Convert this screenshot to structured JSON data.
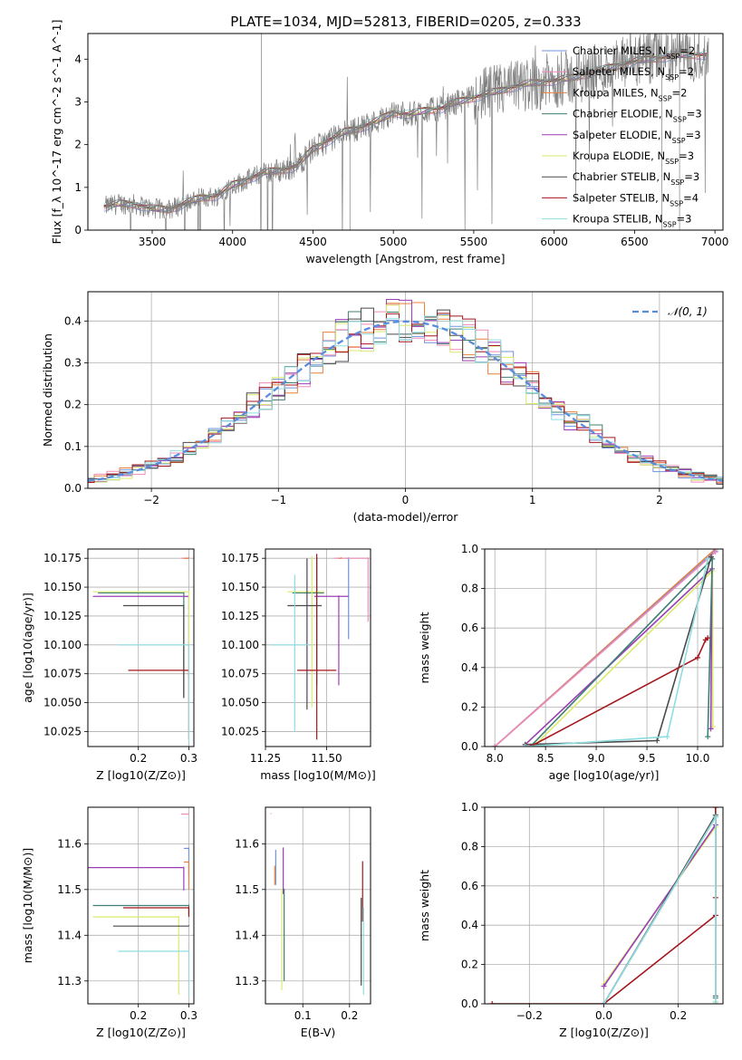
{
  "figure": {
    "title": "PLATE=1034, MJD=52813, FIBERID=0205, z=0.333"
  },
  "legend_colors": {
    "Chabrier MILES, N_SSP=2": "#6f93df",
    "Salpeter MILES, N_SSP=2": "#f08ab8",
    "Kroupa MILES, N_SSP=2": "#e8803d",
    "Chabrier ELODIE, N_SSP=3": "#3f7f73",
    "Salpeter ELODIE, N_SSP=3": "#9b3fb6",
    "Kroupa ELODIE, N_SSP=3": "#d9ea6c",
    "Chabrier STELIB, N_SSP=3": "#4a4a4a",
    "Salpeter STELIB, N_SSP=4": "#a4161c",
    "Kroupa STELIB, N_SSP=3": "#8fdde0"
  },
  "chart_data": [
    {
      "type": "line",
      "panel": "spectrum",
      "title": "PLATE=1034, MJD=52813, FIBERID=0205, z=0.333",
      "xlabel": "wavelength [Angstrom, rest frame]",
      "ylabel": "Flux [f_λ 10^-17 erg cm^-2 s^-1 A^-1]",
      "xlim": [
        3100,
        7050
      ],
      "ylim": [
        0,
        4.6
      ],
      "xticks": [
        3500,
        4000,
        4500,
        5000,
        5500,
        6000,
        6500,
        7000
      ],
      "yticks": [
        0,
        1,
        2,
        3,
        4
      ],
      "grid": false,
      "legend_position": "upper-right",
      "data_color": "#808080",
      "continuum_x": [
        3200,
        3300,
        3400,
        3500,
        3600,
        3700,
        3800,
        3900,
        4000,
        4100,
        4200,
        4300,
        4400,
        4500,
        4600,
        4700,
        4800,
        4900,
        5000,
        5100,
        5200,
        5300,
        5400,
        5500,
        5600,
        5700,
        5800,
        5900,
        6000,
        6100,
        6200,
        6300,
        6400,
        6500,
        6600,
        6700,
        6800,
        6900
      ],
      "continuum_y": [
        0.55,
        0.62,
        0.6,
        0.5,
        0.48,
        0.62,
        0.75,
        0.8,
        1.05,
        1.2,
        1.35,
        1.4,
        1.5,
        1.9,
        2.1,
        2.3,
        2.4,
        2.55,
        2.75,
        2.7,
        2.8,
        2.85,
        3.0,
        3.1,
        3.2,
        3.3,
        3.4,
        3.45,
        3.5,
        3.55,
        3.65,
        3.75,
        3.85,
        3.95,
        4.0,
        4.05,
        4.1,
        4.1
      ],
      "legend": [
        {
          "label": "Chabrier MILES, N",
          "sub": "SSP",
          "suffix": "=2",
          "color": "#6f93df"
        },
        {
          "label": "Salpeter MILES, N",
          "sub": "SSP",
          "suffix": "=2",
          "color": "#f08ab8"
        },
        {
          "label": "Kroupa MILES, N",
          "sub": "SSP",
          "suffix": "=2",
          "color": "#e8803d"
        },
        {
          "label": "Chabrier ELODIE, N",
          "sub": "SSP",
          "suffix": "=3",
          "color": "#3f7f73"
        },
        {
          "label": "Salpeter ELODIE, N",
          "sub": "SSP",
          "suffix": "=3",
          "color": "#9b3fb6"
        },
        {
          "label": "Kroupa ELODIE, N",
          "sub": "SSP",
          "suffix": "=3",
          "color": "#d9ea6c"
        },
        {
          "label": "Chabrier STELIB, N",
          "sub": "SSP",
          "suffix": "=3",
          "color": "#4a4a4a"
        },
        {
          "label": "Salpeter STELIB, N",
          "sub": "SSP",
          "suffix": "=4",
          "color": "#a4161c"
        },
        {
          "label": "Kroupa STELIB, N",
          "sub": "SSP",
          "suffix": "=3",
          "color": "#8fdde0"
        }
      ]
    },
    {
      "type": "line",
      "panel": "residual-histogram",
      "xlabel": "(data-model)/error",
      "ylabel": "Normed distribution",
      "xlim": [
        -2.5,
        2.5
      ],
      "ylim": [
        0,
        0.47
      ],
      "xticks": [
        -2,
        -1,
        0,
        1,
        2
      ],
      "yticks": [
        0.0,
        0.1,
        0.2,
        0.3,
        0.4
      ],
      "grid": true,
      "legend_position": "upper-right",
      "legend": [
        {
          "label": "N(0, 1)",
          "color": "#5b8bdc",
          "style": "dashed"
        }
      ],
      "gaussian": {
        "mean": 0,
        "sigma": 1
      }
    },
    {
      "type": "scatter",
      "panel": "age-vs-Z",
      "xlabel": "Z [log10(Z/Z⊙)]",
      "ylabel": "age [log10(age/yr)]",
      "xlim": [
        0.1,
        0.31
      ],
      "ylim": [
        10.012,
        10.183
      ],
      "xticks": [
        0.2,
        0.3
      ],
      "yticks": [
        10.025,
        10.05,
        10.075,
        10.1,
        10.125,
        10.15,
        10.175
      ],
      "grid": true,
      "points": [
        {
          "color": "#6f93df",
          "x": 0.3,
          "y": 10.175,
          "xerr_left": 0.01,
          "yerr_low": 0.0,
          "yerr_high": 0.0
        },
        {
          "color": "#f08ab8",
          "x": 0.3,
          "y": 10.175,
          "xerr_left": 0.015,
          "yerr_low": 0.0,
          "yerr_high": 0.0
        },
        {
          "color": "#e8803d",
          "x": 0.3,
          "y": 10.175,
          "xerr_left": 0.01,
          "yerr_low": 0.0,
          "yerr_high": 0.0
        },
        {
          "color": "#3f7f73",
          "x": 0.29,
          "y": 10.145,
          "xerr_left": 0.17,
          "yerr_low": 0.09,
          "yerr_high": 0.0
        },
        {
          "color": "#9b3fb6",
          "x": 0.3,
          "y": 10.142,
          "xerr_left": 0.19,
          "yerr_low": 0.07,
          "yerr_high": 0.0
        },
        {
          "color": "#d9ea6c",
          "x": 0.3,
          "y": 10.146,
          "xerr_left": 0.19,
          "yerr_low": 0.09,
          "yerr_high": 0.0
        },
        {
          "color": "#4a4a4a",
          "x": 0.29,
          "y": 10.134,
          "xerr_left": 0.12,
          "yerr_low": 0.08,
          "yerr_high": 0.0
        },
        {
          "color": "#a4161c",
          "x": 0.3,
          "y": 10.078,
          "xerr_left": 0.12,
          "yerr_low": 0.06,
          "yerr_high": 0.0
        },
        {
          "color": "#8fdde0",
          "x": 0.3,
          "y": 10.1,
          "xerr_left": 0.14,
          "yerr_low": 0.085,
          "yerr_high": 0.0
        }
      ]
    },
    {
      "type": "scatter",
      "panel": "age-vs-mass",
      "xlabel": "mass [log10(M/M⊙)]",
      "ylabel": "",
      "xlim": [
        11.25,
        11.68
      ],
      "ylim": [
        10.012,
        10.183
      ],
      "xticks": [
        11.25,
        11.5
      ],
      "yticks": [
        10.025,
        10.05,
        10.075,
        10.1,
        10.125,
        10.15,
        10.175
      ],
      "grid": true,
      "points": [
        {
          "color": "#6f93df",
          "x": 11.59,
          "y": 10.175,
          "xerr_left": 0.01,
          "xerr_right": 0.0,
          "yerr_low": 0.07,
          "yerr_high": 0.0
        },
        {
          "color": "#f08ab8",
          "x": 11.67,
          "y": 10.175,
          "xerr_left": 0.14,
          "xerr_right": 0.0,
          "yerr_low": 0.055,
          "yerr_high": 0.0
        },
        {
          "color": "#e8803d",
          "x": 11.56,
          "y": 10.175,
          "xerr_left": 0.01,
          "xerr_right": 0.0,
          "yerr_low": 0.0,
          "yerr_high": 0.0
        },
        {
          "color": "#3f7f73",
          "x": 11.46,
          "y": 10.145,
          "xerr_left": 0.1,
          "xerr_right": 0.03,
          "yerr_low": 0.08,
          "yerr_high": 0.03
        },
        {
          "color": "#9b3fb6",
          "x": 11.55,
          "y": 10.142,
          "xerr_left": 0.1,
          "xerr_right": 0.04,
          "yerr_low": 0.077,
          "yerr_high": 0.0
        },
        {
          "color": "#d9ea6c",
          "x": 11.44,
          "y": 10.146,
          "xerr_left": 0.1,
          "xerr_right": 0.05,
          "yerr_low": 0.1,
          "yerr_high": 0.03
        },
        {
          "color": "#4a4a4a",
          "x": 11.42,
          "y": 10.134,
          "xerr_left": 0.08,
          "xerr_right": 0.06,
          "yerr_low": 0.09,
          "yerr_high": 0.04
        },
        {
          "color": "#a4161c",
          "x": 11.46,
          "y": 10.078,
          "xerr_left": 0.08,
          "xerr_right": 0.08,
          "yerr_low": 0.06,
          "yerr_high": 0.1
        },
        {
          "color": "#8fdde0",
          "x": 11.37,
          "y": 10.1,
          "xerr_left": 0.1,
          "xerr_right": 0.06,
          "yerr_low": 0.075,
          "yerr_high": 0.06
        }
      ]
    },
    {
      "type": "line",
      "panel": "mass-weight-vs-age",
      "xlabel": "age [log10(age/yr)]",
      "ylabel": "mass weight",
      "xlim": [
        7.9,
        10.25
      ],
      "ylim": [
        0,
        1
      ],
      "xticks": [
        8.0,
        8.5,
        9.0,
        9.5,
        10.0
      ],
      "yticks": [
        0.0,
        0.2,
        0.4,
        0.6,
        0.8,
        1.0
      ],
      "grid": true,
      "series": [
        {
          "color": "#e8803d",
          "x": [
            8.0,
            10.175
          ],
          "y": [
            0.0,
            1.0
          ]
        },
        {
          "color": "#6f93df",
          "x": [
            8.0,
            10.175
          ],
          "y": [
            0.0,
            0.99
          ]
        },
        {
          "color": "#f08ab8",
          "x": [
            8.0,
            10.175
          ],
          "y": [
            0.0,
            0.985
          ]
        },
        {
          "color": "#d9ea6c",
          "x": [
            8.4,
            10.146,
            10.15
          ],
          "y": [
            0.01,
            0.89,
            0.1
          ]
        },
        {
          "color": "#9b3fb6",
          "x": [
            8.3,
            10.142,
            10.13
          ],
          "y": [
            0.01,
            0.9,
            0.09
          ]
        },
        {
          "color": "#3f7f73",
          "x": [
            8.35,
            10.145,
            10.1
          ],
          "y": [
            0.0,
            0.95,
            0.05
          ]
        },
        {
          "color": "#4a4a4a",
          "x": [
            8.3,
            9.6,
            10.134
          ],
          "y": [
            0.01,
            0.03,
            0.96
          ]
        },
        {
          "color": "#a4161c",
          "x": [
            8.35,
            10.0,
            10.078,
            10.1
          ],
          "y": [
            0.0,
            0.45,
            0.54,
            0.55
          ]
        },
        {
          "color": "#8fdde0",
          "x": [
            8.3,
            9.7,
            10.1
          ],
          "y": [
            0.0,
            0.05,
            0.95
          ]
        }
      ]
    },
    {
      "type": "scatter",
      "panel": "mass-vs-Z",
      "xlabel": "Z [log10(Z/Z⊙)]",
      "ylabel": "mass [log10(M/M⊙)]",
      "xlim": [
        0.1,
        0.31
      ],
      "ylim": [
        11.25,
        11.68
      ],
      "xticks": [
        0.2,
        0.3
      ],
      "yticks": [
        11.3,
        11.4,
        11.5,
        11.6
      ],
      "grid": true,
      "points": [
        {
          "color": "#f08ab8",
          "x": 0.3,
          "y": 11.665,
          "xerr_left": 0.015,
          "yerr_low": 0.0
        },
        {
          "color": "#6f93df",
          "x": 0.3,
          "y": 11.59,
          "xerr_left": 0.01,
          "yerr_low": 0.06
        },
        {
          "color": "#e8803d",
          "x": 0.3,
          "y": 11.56,
          "xerr_left": 0.01,
          "yerr_low": 0.06
        },
        {
          "color": "#9b3fb6",
          "x": 0.29,
          "y": 11.548,
          "xerr_left": 0.19,
          "yerr_low": 0.05
        },
        {
          "color": "#3f7f73",
          "x": 0.3,
          "y": 11.465,
          "xerr_left": 0.19,
          "yerr_low": 0.02
        },
        {
          "color": "#a4161c",
          "x": 0.3,
          "y": 11.46,
          "xerr_left": 0.13,
          "yerr_low": 0.02
        },
        {
          "color": "#d9ea6c",
          "x": 0.28,
          "y": 11.44,
          "xerr_left": 0.17,
          "yerr_low": 0.17
        },
        {
          "color": "#4a4a4a",
          "x": 0.3,
          "y": 11.42,
          "xerr_left": 0.15,
          "yerr_low": 0.0
        },
        {
          "color": "#8fdde0",
          "x": 0.3,
          "y": 11.365,
          "xerr_left": 0.14,
          "yerr_low": 0.1
        }
      ]
    },
    {
      "type": "scatter",
      "panel": "mass-vs-EBV",
      "xlabel": "E(B-V)",
      "ylabel": "",
      "xlim": [
        0.02,
        0.245
      ],
      "ylim": [
        11.25,
        11.68
      ],
      "xticks": [
        0.1,
        0.2
      ],
      "yticks": [
        11.3,
        11.4,
        11.5,
        11.6
      ],
      "grid": true,
      "points": [
        {
          "color": "#f08ab8",
          "x": 0.032,
          "y": 11.665,
          "yerr_low": 0.0,
          "yerr_high": 0.0
        },
        {
          "color": "#6f93df",
          "x": 0.042,
          "y": 11.585,
          "yerr_low": 0.075,
          "yerr_high": 0.0
        },
        {
          "color": "#e8803d",
          "x": 0.04,
          "y": 11.55,
          "yerr_low": 0.04,
          "yerr_high": 0.0
        },
        {
          "color": "#9b3fb6",
          "x": 0.058,
          "y": 11.59,
          "yerr_low": 0.1,
          "yerr_high": 0.0
        },
        {
          "color": "#3f7f73",
          "x": 0.06,
          "y": 11.5,
          "yerr_low": 0.2,
          "yerr_high": 0.0
        },
        {
          "color": "#d9ea6c",
          "x": 0.055,
          "y": 11.5,
          "yerr_low": 0.22,
          "yerr_high": 0.0
        },
        {
          "color": "#4a4a4a",
          "x": 0.225,
          "y": 11.42,
          "yerr_low": 0.13,
          "yerr_high": 0.06
        },
        {
          "color": "#a4161c",
          "x": 0.228,
          "y": 11.48,
          "yerr_low": 0.05,
          "yerr_high": 0.08
        },
        {
          "color": "#8fdde0",
          "x": 0.23,
          "y": 11.39,
          "yerr_low": 0.12,
          "yerr_high": 0.07
        }
      ]
    },
    {
      "type": "line",
      "panel": "mass-weight-vs-Z",
      "xlabel": "Z [log10(Z/Z⊙)]",
      "ylabel": "mass weight",
      "xlim": [
        -0.32,
        0.32
      ],
      "ylim": [
        0,
        1
      ],
      "xticks": [
        -0.2,
        0.0,
        0.2
      ],
      "yticks": [
        0.0,
        0.2,
        0.4,
        0.6,
        0.8,
        1.0
      ],
      "grid": true,
      "series": [
        {
          "color": "#e8803d",
          "x": [
            0.3,
            0.3
          ],
          "y": [
            0.0,
            1.0
          ]
        },
        {
          "color": "#a4161c",
          "x": [
            -0.3,
            0.0,
            0.3,
            0.3,
            0.3
          ],
          "y": [
            0.0,
            0.0,
            0.45,
            0.54,
            1.0
          ]
        },
        {
          "color": "#3f7f73",
          "x": [
            0.0,
            0.3,
            0.3
          ],
          "y": [
            0.0,
            0.95,
            0.03
          ]
        },
        {
          "color": "#d9ea6c",
          "x": [
            0.0,
            0.3,
            0.3
          ],
          "y": [
            0.1,
            0.9,
            0.01
          ]
        },
        {
          "color": "#9b3fb6",
          "x": [
            0.0,
            0.3
          ],
          "y": [
            0.09,
            0.91
          ]
        },
        {
          "color": "#4a4a4a",
          "x": [
            0.0,
            0.3,
            0.3
          ],
          "y": [
            0.0,
            0.96,
            0.04
          ]
        },
        {
          "color": "#8fdde0",
          "x": [
            0.0,
            0.3,
            0.3
          ],
          "y": [
            0.0,
            0.95,
            0.01
          ]
        }
      ]
    }
  ]
}
